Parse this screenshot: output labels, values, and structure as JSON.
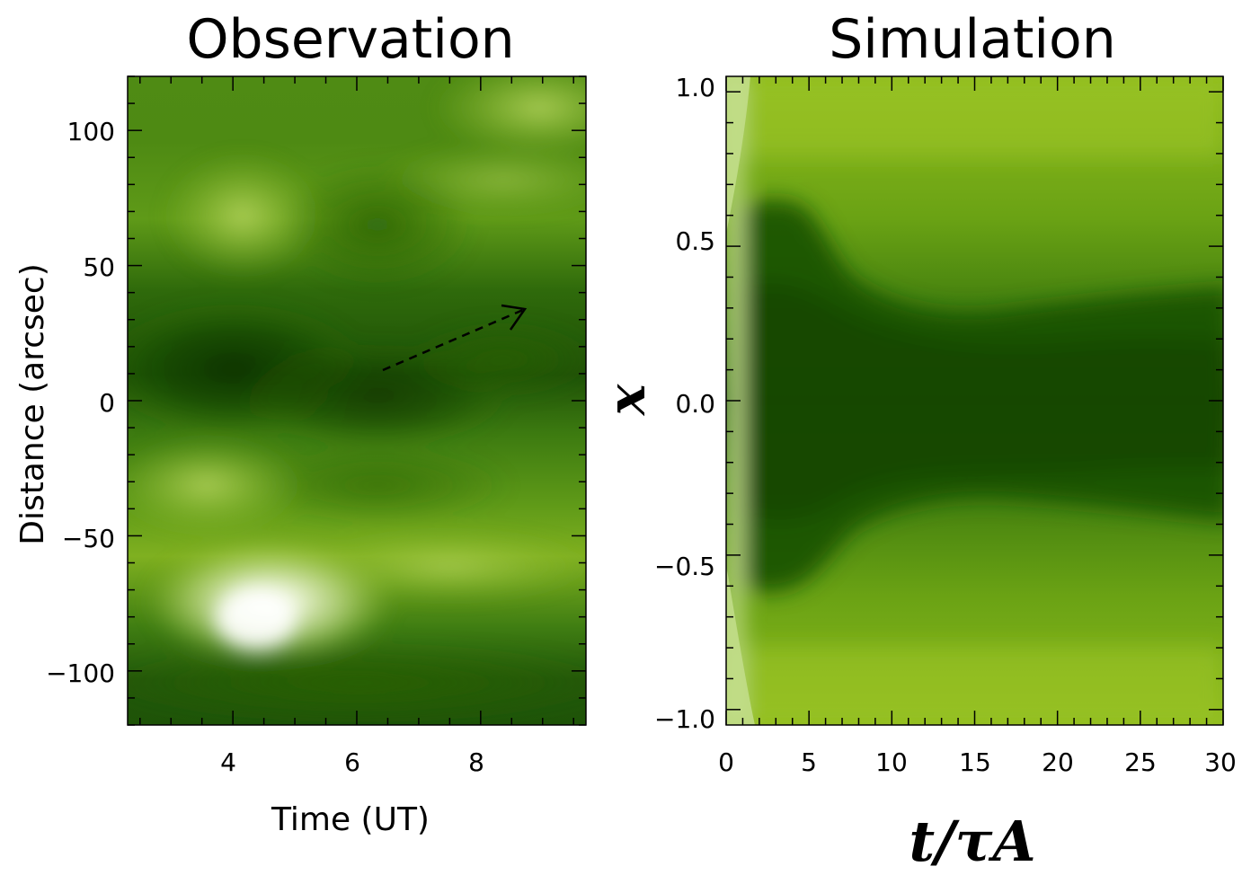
{
  "chart_data": [
    {
      "type": "heatmap",
      "title": "Observation",
      "xlabel": "Time (UT)",
      "ylabel": "Distance (arcsec)",
      "xlim": [
        2.3,
        9.7
      ],
      "ylim": [
        -120,
        120
      ],
      "xticks": [
        4,
        6,
        8
      ],
      "xtick_labels": [
        "4",
        "6",
        "8"
      ],
      "yticks": [
        100,
        50,
        0,
        -50,
        -100
      ],
      "ytick_labels": [
        "100",
        "50",
        "0",
        "−50",
        "−100"
      ],
      "colormap": [
        "#ffffff",
        "#d3e6a3",
        "#99c128",
        "#5c9b16",
        "#2d6d0b",
        "#113b04"
      ],
      "features": [
        {
          "name": "bright region",
          "time": 4.5,
          "distance": -80,
          "level": "brightest"
        },
        {
          "name": "dark band",
          "time": 4.0,
          "distance": 10,
          "level": "darkest"
        }
      ],
      "annotation": {
        "type": "dashed-arrow",
        "from": [
          6.5,
          12
        ],
        "to": [
          8.8,
          35
        ]
      }
    },
    {
      "type": "heatmap",
      "title": "Simulation",
      "xlabel": "t/τA",
      "ylabel": "x",
      "xlim": [
        0,
        30
      ],
      "ylim": [
        -1.05,
        1.05
      ],
      "xticks": [
        0,
        5,
        10,
        15,
        20,
        25,
        30
      ],
      "xtick_labels": [
        "0",
        "5",
        "10",
        "15",
        "20",
        "25",
        "30"
      ],
      "yticks": [
        1.0,
        0.5,
        0.0,
        -0.5,
        -1.0
      ],
      "ytick_labels": [
        "1.0",
        "0.5",
        "0.0",
        "−0.5",
        "−1.0"
      ],
      "colormap": [
        "#c3de8c",
        "#99c128",
        "#5c9b16",
        "#2d6d0b",
        "#174e06"
      ],
      "features": [
        {
          "name": "dark core",
          "t_range": [
            0,
            30
          ],
          "x_halfwidth_start": 0.65,
          "x_halfwidth_end": 0.3,
          "level": "darkest"
        }
      ]
    }
  ]
}
